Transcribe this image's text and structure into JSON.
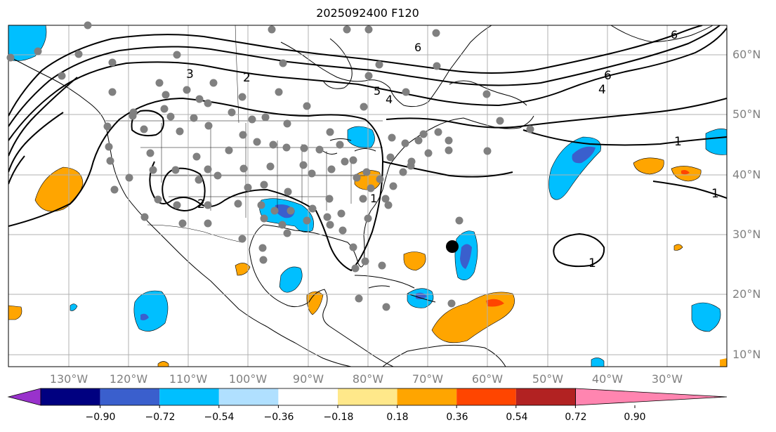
{
  "title": "2025092400 F120",
  "lat_labels": [
    "60°N",
    "50°N",
    "40°N",
    "30°N",
    "20°N",
    "10°N"
  ],
  "lon_labels": [
    "130°W",
    "120°W",
    "110°W",
    "100°W",
    "90°W",
    "80°W",
    "70°W",
    "60°W",
    "50°W",
    "40°W",
    "30°W"
  ],
  "contour_labels": [
    "3",
    "2",
    "5",
    "4",
    "6",
    "6",
    "4",
    "2",
    "1",
    "1",
    "1",
    "1",
    "6"
  ],
  "colorbar": {
    "ticks": [
      "−0.90",
      "−0.72",
      "−0.54",
      "−0.36",
      "−0.18",
      "0.18",
      "0.36",
      "0.54",
      "0.72",
      "0.90"
    ],
    "colors": [
      "#9932cc",
      "#000080",
      "#3a5fcd",
      "#00bfff",
      "#b0e0ff",
      "#ffffff",
      "#ffe88a",
      "#ffa500",
      "#ff4500",
      "#b22222",
      "#ff85b0"
    ]
  },
  "colors": {
    "neg_strong": "#3a5fcd",
    "neg": "#00bfff",
    "pos": "#ffa500",
    "pos_strong": "#ff4500",
    "station": "#808080",
    "grid": "#b0b0b0"
  }
}
